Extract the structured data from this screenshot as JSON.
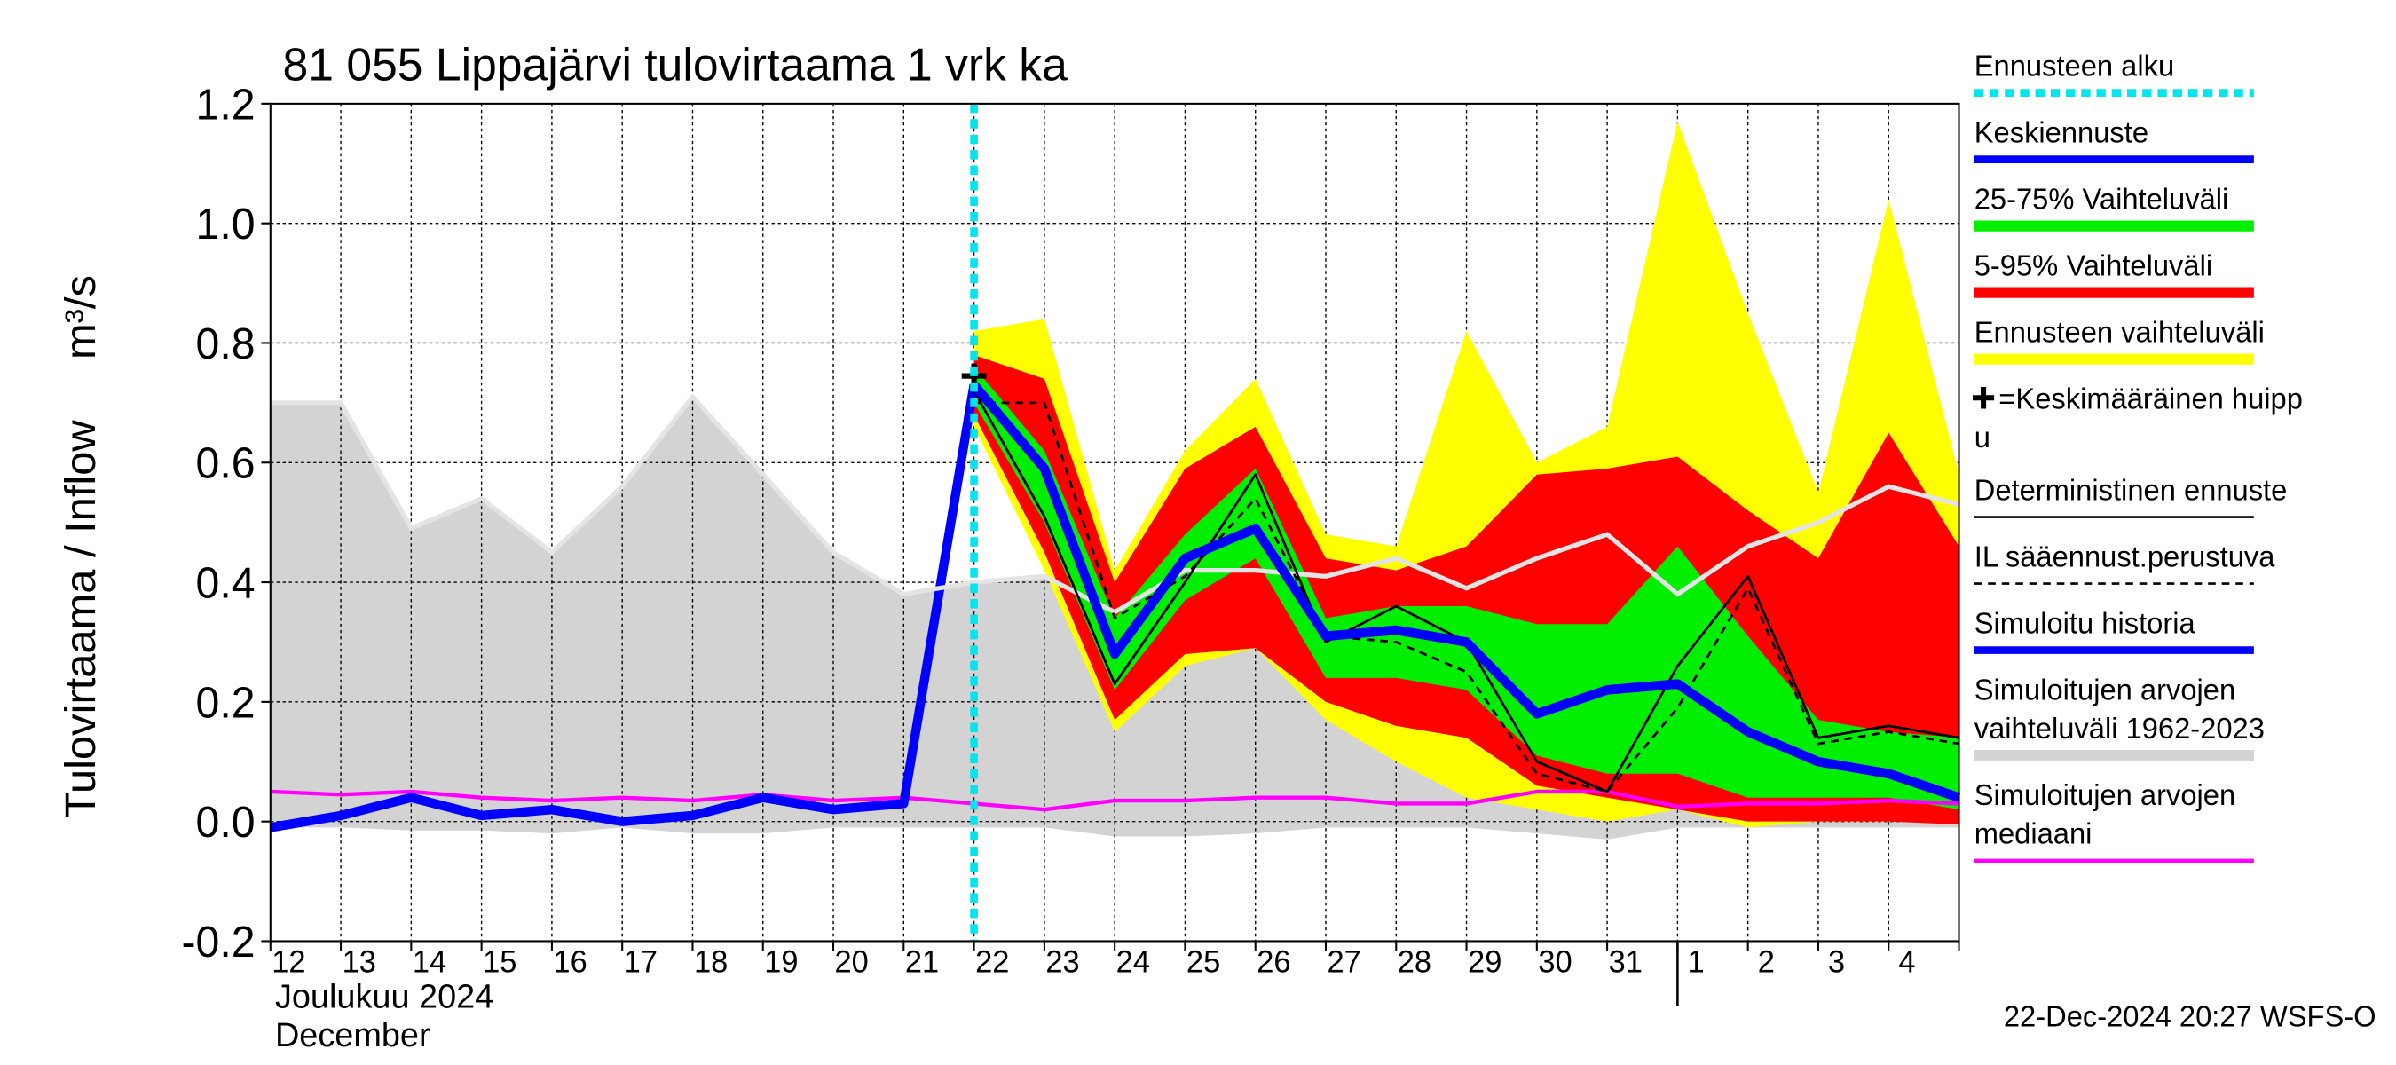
{
  "chart_data": {
    "type": "line",
    "title": "81 055 Lippajärvi tulovirtaama 1 vrk ka",
    "y_label": "Tulovirtaama / Inflow",
    "y_unit": "m³/s",
    "month_labels": [
      "Joulukuu  2024",
      "December"
    ],
    "footer": "22-Dec-2024 20:27 WSFS-O",
    "categories": [
      "12",
      "13",
      "14",
      "15",
      "16",
      "17",
      "18",
      "19",
      "20",
      "21",
      "22",
      "23",
      "24",
      "25",
      "26",
      "27",
      "28",
      "29",
      "30",
      "31",
      "1",
      "2",
      "3",
      "4",
      null
    ],
    "month_break_index": 20,
    "ylim": [
      -0.2,
      1.2
    ],
    "yticks": [
      -0.2,
      {
        "value": 0,
        "label": "0.0"
      },
      0.2,
      0.4,
      0.6,
      0.8,
      {
        "value": 1,
        "label": "1.0"
      },
      1.2
    ],
    "grid": true,
    "forecast_start": {
      "name": [
        "Ennusteen alku"
      ],
      "color": "#00e5ee",
      "category_index": 10
    },
    "series": [
      {
        "name": [
          "Keskiennuste"
        ],
        "kind": "line",
        "color": "#0000ff",
        "width": 6,
        "values": [
          null,
          null,
          null,
          null,
          null,
          null,
          null,
          null,
          null,
          null,
          0.73,
          0.59,
          0.28,
          0.44,
          0.49,
          0.31,
          0.32,
          0.3,
          0.18,
          0.22,
          0.23,
          0.15,
          0.1,
          0.08,
          0.04
        ]
      },
      {
        "name": [
          "25-75% Vaihteluväli"
        ],
        "kind": "band",
        "color": "#00ee00",
        "upper": [
          null,
          null,
          null,
          null,
          null,
          null,
          null,
          null,
          null,
          null,
          0.76,
          0.62,
          0.34,
          0.48,
          0.59,
          0.34,
          0.36,
          0.36,
          0.33,
          0.33,
          0.46,
          0.31,
          0.17,
          0.15,
          0.14
        ],
        "lower": [
          null,
          null,
          null,
          null,
          null,
          null,
          null,
          null,
          null,
          null,
          0.7,
          0.5,
          0.22,
          0.37,
          0.44,
          0.24,
          0.24,
          0.22,
          0.11,
          0.08,
          0.08,
          0.04,
          0.04,
          0.04,
          0.02
        ]
      },
      {
        "name": [
          "5-95% Vaihteluväli"
        ],
        "kind": "band",
        "color": "#ff0000",
        "upper": [
          null,
          null,
          null,
          null,
          null,
          null,
          null,
          null,
          null,
          null,
          0.78,
          0.74,
          0.4,
          0.59,
          0.66,
          0.44,
          0.42,
          0.46,
          0.58,
          0.59,
          0.61,
          0.52,
          0.44,
          0.65,
          0.46
        ],
        "lower": [
          null,
          null,
          null,
          null,
          null,
          null,
          null,
          null,
          null,
          null,
          0.68,
          0.45,
          0.17,
          0.28,
          0.29,
          0.2,
          0.16,
          0.14,
          0.06,
          0.04,
          0.02,
          0.0,
          0.0,
          0.0,
          -0.005
        ]
      },
      {
        "name": [
          "Ennusteen vaihteluväli"
        ],
        "kind": "band",
        "color": "#ffff00",
        "upper": [
          null,
          null,
          null,
          null,
          null,
          null,
          null,
          null,
          null,
          null,
          0.82,
          0.84,
          0.42,
          0.62,
          0.74,
          0.48,
          0.46,
          0.82,
          0.6,
          0.66,
          1.17,
          0.85,
          0.55,
          1.04,
          0.58
        ],
        "lower": [
          null,
          null,
          null,
          null,
          null,
          null,
          null,
          null,
          null,
          null,
          0.66,
          0.42,
          0.15,
          0.26,
          0.29,
          0.17,
          0.1,
          0.04,
          0.02,
          0.0,
          0.02,
          -0.01,
          0.0,
          0.0,
          0.0
        ]
      },
      {
        "name": [
          "=Keskimääräinen huipp",
          "u"
        ],
        "kind": "marker",
        "color": "#000000",
        "values": [
          null,
          null,
          null,
          null,
          null,
          null,
          null,
          null,
          null,
          null,
          0.745,
          null,
          null,
          null,
          null,
          null,
          null,
          null,
          null,
          null,
          null,
          null,
          null,
          null,
          null
        ]
      },
      {
        "name": [
          "Deterministinen ennuste"
        ],
        "kind": "line",
        "color": "#000000",
        "width": 1.5,
        "values": [
          null,
          null,
          null,
          null,
          null,
          null,
          null,
          null,
          null,
          null,
          0.72,
          0.51,
          0.23,
          0.4,
          0.58,
          0.3,
          0.36,
          0.3,
          0.1,
          0.05,
          0.26,
          0.41,
          0.14,
          0.16,
          0.14
        ]
      },
      {
        "name": [
          "IL sääennust.perustuva"
        ],
        "kind": "line",
        "dashed": true,
        "color": "#000000",
        "width": 1.5,
        "values": [
          null,
          null,
          null,
          null,
          null,
          null,
          null,
          null,
          null,
          null,
          0.7,
          0.7,
          0.34,
          0.41,
          0.54,
          0.31,
          0.3,
          0.25,
          0.08,
          0.05,
          0.19,
          0.39,
          0.13,
          0.15,
          0.13
        ]
      },
      {
        "name": [
          "Simuloitu historia"
        ],
        "kind": "line",
        "color": "#0000ff",
        "width": 6,
        "values": [
          -0.01,
          0.01,
          0.04,
          0.01,
          0.02,
          0.0,
          0.01,
          0.04,
          0.02,
          0.03,
          0.73,
          null,
          null,
          null,
          null,
          null,
          null,
          null,
          null,
          null,
          null,
          null,
          null,
          null,
          null
        ]
      },
      {
        "name": [
          "Simuloitujen arvojen",
          "vaihteluväli 1962-2023"
        ],
        "kind": "band",
        "color": "#d3d3d3",
        "edge_color": "#e4e4e4",
        "upper": [
          0.7,
          0.7,
          0.49,
          0.54,
          0.45,
          0.56,
          0.71,
          0.58,
          0.45,
          0.38,
          0.4,
          0.41,
          0.35,
          0.42,
          0.42,
          0.41,
          0.44,
          0.39,
          0.44,
          0.48,
          0.38,
          0.46,
          0.5,
          0.56,
          0.53
        ],
        "lower": [
          -0.01,
          -0.01,
          -0.015,
          -0.015,
          -0.02,
          -0.01,
          -0.02,
          -0.02,
          -0.01,
          -0.01,
          -0.01,
          -0.01,
          -0.025,
          -0.025,
          -0.02,
          -0.01,
          -0.01,
          -0.01,
          -0.02,
          -0.03,
          -0.01,
          -0.01,
          -0.01,
          -0.01,
          -0.01
        ]
      },
      {
        "name": [
          "Simuloitujen arvojen",
          "mediaani"
        ],
        "kind": "line",
        "color": "#ff00ff",
        "width": 2.5,
        "values": [
          0.05,
          0.045,
          0.05,
          0.04,
          0.035,
          0.04,
          0.035,
          0.045,
          0.035,
          0.04,
          0.03,
          0.02,
          0.035,
          0.035,
          0.04,
          0.04,
          0.03,
          0.03,
          0.05,
          0.05,
          0.025,
          0.03,
          0.03,
          0.035,
          0.03
        ]
      }
    ],
    "draw_order": [
      8,
      3,
      2,
      1,
      9,
      5,
      6,
      7,
      0,
      4
    ]
  }
}
